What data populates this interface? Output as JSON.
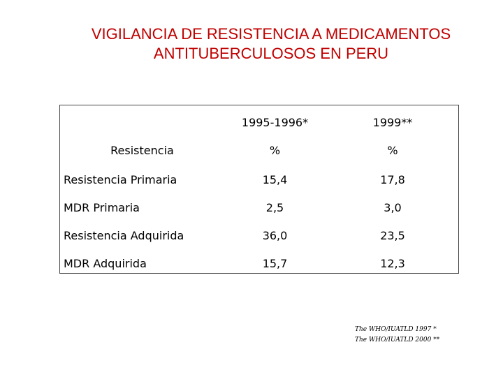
{
  "title": [
    "VIGILANCIA DE RESISTENCIA A MEDICAMENTOS",
    "ANTITUBERCULOSOS EN PERU"
  ],
  "table": {
    "header": [
      "1995-1996*",
      "1999**"
    ],
    "subheader": [
      "Resistencia",
      "%",
      "%"
    ],
    "rows": [
      [
        "Resistencia Primaria",
        "15,4",
        "17,8"
      ],
      [
        "MDR Primaria",
        "2,5",
        "3,0"
      ],
      [
        "Resistencia Adquirida",
        "36,0",
        "23,5"
      ],
      [
        "MDR Adquirida",
        "15,7",
        "12,3"
      ]
    ]
  },
  "footnotes": [
    "The WHO/IUATLD 1997 *",
    "The WHO/IUATLD 2000 **"
  ]
}
